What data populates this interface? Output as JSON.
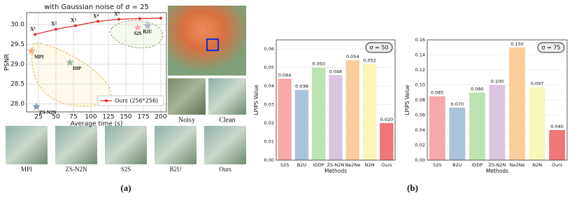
{
  "chart_data": [
    {
      "type": "line",
      "title": "with Gaussian noise of σ = 25",
      "xlabel": "Average time (s)",
      "ylabel": "PSNR",
      "xlim": [
        8,
        208
      ],
      "xticks": [
        25,
        50,
        75,
        100,
        125,
        150,
        175,
        200
      ],
      "ylim": [
        27.8,
        30.3
      ],
      "yticks": [
        {
          "value": 28,
          "label": "28.0"
        },
        28.5,
        {
          "value": 29,
          "label": "29.0"
        },
        29.5,
        {
          "value": 30,
          "label": "30.0"
        }
      ],
      "grid": true,
      "legend": "lower right",
      "series": [
        {
          "name": "Ours (256*256)",
          "color": "#e0302b",
          "x": [
            20,
            50,
            78,
            110,
            140,
            170,
            200
          ],
          "values": [
            29.75,
            29.88,
            29.97,
            30.08,
            30.13,
            30.15,
            30.16
          ],
          "point_labels": [
            "X¹",
            "X²",
            "X³",
            "X⁴",
            "X⁵",
            null,
            null
          ]
        }
      ],
      "points": [
        {
          "name": "MPI",
          "x": 15,
          "value": 29.33,
          "color": "#f4b183"
        },
        {
          "name": "DIP",
          "x": 70,
          "value": 29.04,
          "color": "#9fb8a8"
        },
        {
          "name": "ZS-N2N",
          "x": 22,
          "value": 27.93,
          "color": "#7f9cc0"
        },
        {
          "name": "S2S",
          "x": 167,
          "value": 29.92,
          "color": "#f6b0b0"
        },
        {
          "name": "B2U",
          "x": 181,
          "value": 29.97,
          "color": "#b0b4cc"
        }
      ]
    },
    {
      "type": "bar",
      "annotation": "σ = 50",
      "xlabel": "Methods",
      "ylabel": "LPIPS Value",
      "categories": [
        "S2S",
        "B2U",
        "IDDP",
        "ZS-N2N",
        "Ne2Ne",
        "N2N",
        "Ours"
      ],
      "values": [
        0.044,
        0.038,
        0.05,
        0.046,
        0.054,
        0.052,
        0.02
      ],
      "value_labels": [
        "0.044",
        "0.038",
        "0.050",
        "0.046",
        "0.054",
        "0.052",
        "0.020"
      ],
      "colors": [
        "#f7a8a8",
        "#a9c3dc",
        "#bde3b3",
        "#d9c5e2",
        "#f9cf9c",
        "#fbf6b8",
        "#ef7676"
      ],
      "ylim": [
        0,
        0.065
      ],
      "yticks": [
        {
          "value": 0,
          "label": "0.00"
        },
        0.01,
        0.02,
        0.03,
        0.04,
        0.05,
        0.06
      ],
      "grid": true
    },
    {
      "type": "bar",
      "annotation": "σ = 75",
      "xlabel": "Methods",
      "ylabel": "LPIPS Value",
      "categories": [
        "S2S",
        "B2U",
        "IDDP",
        "ZS-N2N",
        "Ne2Ne",
        "N2N",
        "Ours"
      ],
      "values": [
        0.085,
        0.07,
        0.09,
        0.1,
        0.15,
        0.097,
        0.04
      ],
      "value_labels": [
        "0.085",
        "0.070",
        "0.090",
        "0.100",
        "0.150",
        "0.097",
        "0.040"
      ],
      "colors": [
        "#f7a8a8",
        "#a9c3dc",
        "#bde3b3",
        "#d9c5e2",
        "#f9cf9c",
        "#fbf6b8",
        "#ef7676"
      ],
      "ylim": [
        0,
        0.16
      ],
      "yticks": [
        {
          "value": 0,
          "label": "0.00"
        },
        0.02,
        0.04,
        0.06,
        0.08,
        {
          "value": 0.1,
          "label": "0.10"
        },
        0.12,
        0.14,
        0.16
      ],
      "grid": true
    }
  ],
  "figure": {
    "panels": [
      "(a)",
      "(b)"
    ],
    "noisy": "Noisy",
    "clean": "Clean",
    "crops": [
      "MPI",
      "ZS-N2N",
      "S2S",
      "B2U",
      "Ours"
    ]
  }
}
